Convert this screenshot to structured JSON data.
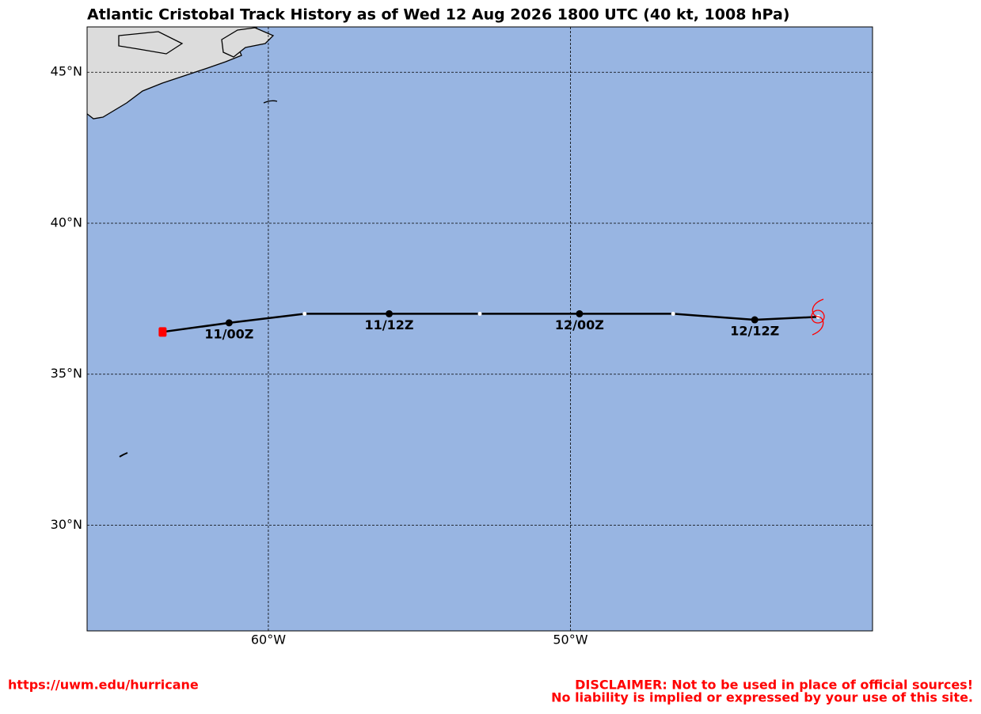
{
  "chart_data": {
    "type": "track",
    "title": "Atlantic Cristobal Track History as of Wed 12 Aug 2026 1800 UTC (40 kt, 1008 hPa)",
    "x": [
      -63.5,
      -61.3,
      -58.8,
      -56.0,
      -53.0,
      -49.7,
      -46.6,
      -43.9,
      -41.8
    ],
    "values": [
      36.4,
      36.7,
      37.0,
      37.0,
      37.0,
      37.0,
      37.0,
      36.8,
      36.9
    ],
    "point_labels": [
      null,
      "11/00Z",
      null,
      "11/12Z",
      null,
      "12/00Z",
      null,
      "12/12Z",
      null
    ],
    "color": "#000000",
    "start_color": "#ff0000",
    "ocean_color": "#98b5e2",
    "land_color": "#dcdcdc",
    "xlim": [
      -66,
      -40
    ],
    "ylim": [
      26.5,
      46.5
    ],
    "xticks": [
      {
        "value": -60,
        "label": "60°W"
      },
      {
        "value": -50,
        "label": "50°W"
      }
    ],
    "yticks": [
      {
        "value": 30,
        "label": "30°N"
      },
      {
        "value": 35,
        "label": "35°N"
      },
      {
        "value": 40,
        "label": "40°N"
      },
      {
        "value": 45,
        "label": "45°N"
      }
    ],
    "grid": true
  },
  "footer": {
    "url": "https://uwm.edu/hurricane",
    "disclaimer": [
      "DISCLAIMER: Not to be used in place of official sources!",
      "No liability is implied or expressed by your use of this site."
    ]
  }
}
